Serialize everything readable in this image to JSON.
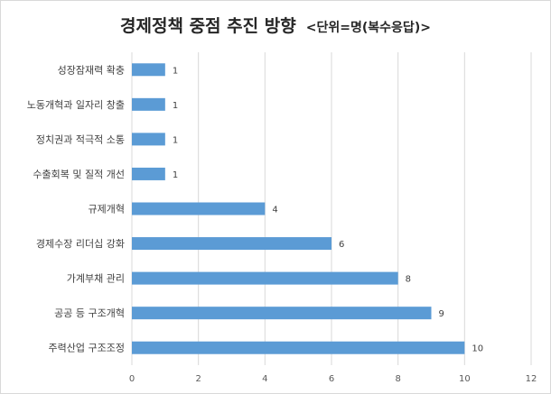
{
  "chart_data": {
    "type": "bar",
    "orientation": "horizontal",
    "title": "경제정책 중점 추진 방향",
    "subtitle": "<단위=명(복수응답)>",
    "categories": [
      "성장잠재력 확충",
      "노동개혁과 일자리 창출",
      "정치권과 적극적 소통",
      "수출회복 및 질적 개선",
      "규제개혁",
      "경제수장 리더십 강화",
      "가계부채 관리",
      "공공 등 구조개혁",
      "주력산업 구조조정"
    ],
    "values": [
      1,
      1,
      1,
      1,
      4,
      6,
      8,
      9,
      10
    ],
    "xlim": [
      0,
      12
    ],
    "xticks": [
      0,
      2,
      4,
      6,
      8,
      10,
      12
    ],
    "grid": true,
    "bar_color": "#5b9bd5",
    "data_labels": true
  }
}
